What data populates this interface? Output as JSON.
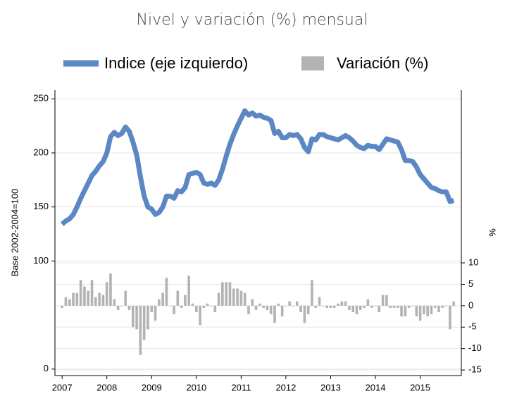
{
  "chart_data": {
    "type": "line_bar",
    "title": "Nivel y variación (%) mensual",
    "ylabel": "Base 2002-2004=100",
    "y2label": "%",
    "xlim": [
      2006.84,
      2015.92
    ],
    "xticks": [
      2007,
      2008,
      2009,
      2010,
      2011,
      2012,
      2013,
      2014,
      2015
    ],
    "ylim": [
      -6,
      258
    ],
    "yticks": [
      0,
      100,
      150,
      200,
      250
    ],
    "y2lim": [
      -16.3,
      50.3
    ],
    "y2ticks": [
      10,
      5,
      0,
      -5,
      -10,
      -15
    ],
    "grid": true,
    "x": [
      2007,
      2007.083,
      2007.167,
      2007.25,
      2007.333,
      2007.417,
      2007.5,
      2007.583,
      2007.667,
      2007.75,
      2007.833,
      2007.917,
      2008,
      2008.083,
      2008.167,
      2008.25,
      2008.333,
      2008.417,
      2008.5,
      2008.583,
      2008.667,
      2008.75,
      2008.833,
      2008.917,
      2009,
      2009.083,
      2009.167,
      2009.25,
      2009.333,
      2009.417,
      2009.5,
      2009.583,
      2009.667,
      2009.75,
      2009.833,
      2009.917,
      2010,
      2010.083,
      2010.167,
      2010.25,
      2010.333,
      2010.417,
      2010.5,
      2010.583,
      2010.667,
      2010.75,
      2010.833,
      2010.917,
      2011,
      2011.083,
      2011.167,
      2011.25,
      2011.333,
      2011.417,
      2011.5,
      2011.583,
      2011.667,
      2011.75,
      2011.833,
      2011.917,
      2012,
      2012.083,
      2012.167,
      2012.25,
      2012.333,
      2012.417,
      2012.5,
      2012.583,
      2012.667,
      2012.75,
      2012.833,
      2012.917,
      2013,
      2013.083,
      2013.167,
      2013.25,
      2013.333,
      2013.417,
      2013.5,
      2013.583,
      2013.667,
      2013.75,
      2013.833,
      2013.917,
      2014,
      2014.083,
      2014.167,
      2014.25,
      2014.333,
      2014.417,
      2014.5,
      2014.583,
      2014.667,
      2014.75,
      2014.833,
      2014.917,
      2015,
      2015.083,
      2015.167,
      2015.25,
      2015.333,
      2015.417,
      2015.5,
      2015.583,
      2015.667,
      2015.75
    ],
    "series": [
      {
        "name": "Indice (eje izquierdo)",
        "color": "#5b87c5",
        "axis": "y",
        "kind": "line",
        "values": [
          134,
          137,
          139,
          143,
          150,
          158,
          165,
          172,
          179,
          183,
          188,
          192,
          200,
          215,
          219,
          216,
          218,
          224,
          220,
          210,
          198,
          178,
          160,
          150,
          148,
          143,
          145,
          150,
          160,
          160,
          158,
          165,
          164,
          168,
          180,
          181,
          182,
          180,
          172,
          171,
          172,
          170,
          175,
          185,
          197,
          208,
          217,
          225,
          232,
          239,
          235,
          237,
          234,
          235,
          233,
          232,
          230,
          218,
          220,
          214,
          214,
          217,
          216,
          217,
          213,
          205,
          201,
          213,
          212,
          217,
          217,
          215,
          214,
          213,
          212,
          214,
          216,
          214,
          211,
          207,
          205,
          204,
          207,
          206,
          206,
          203,
          208,
          213,
          212,
          211,
          210,
          203,
          193,
          193,
          192,
          187,
          180,
          176,
          172,
          168,
          167,
          165,
          164,
          164,
          155,
          156
        ]
      },
      {
        "name": "Variación (%)",
        "color": "#b3b3b3",
        "axis": "y2",
        "kind": "bar",
        "values": [
          -0.5,
          2,
          1.5,
          3,
          3,
          6,
          4.5,
          3.5,
          6,
          2,
          3,
          2.5,
          5.5,
          7.5,
          1.5,
          -1,
          0,
          3.5,
          -1,
          -5,
          -5.5,
          -11.5,
          -8,
          -5.5,
          -1.5,
          -3.5,
          1.5,
          3,
          6.5,
          0,
          -2,
          3.5,
          -0.5,
          2.5,
          7,
          0.5,
          -1.5,
          -4.5,
          -0.5,
          0.5,
          0,
          -1.5,
          3,
          5.5,
          5.5,
          5.5,
          4,
          4,
          3.5,
          3,
          -2,
          1.5,
          -1,
          0.5,
          -0.5,
          -1,
          -2,
          -4,
          0.5,
          -2.5,
          0,
          1,
          0,
          1,
          -1.5,
          -4,
          -2,
          6,
          -0.5,
          2,
          0,
          -0.5,
          -0.5,
          -0.5,
          0.5,
          1,
          1,
          -1,
          -1.5,
          -2,
          -1,
          -0.5,
          1.5,
          -0.5,
          0,
          -1.5,
          2.5,
          2.5,
          -0.5,
          -0.5,
          -0.5,
          -2.5,
          -2.5,
          -0.5,
          0,
          -2.5,
          -3.5,
          -2,
          -2.5,
          -2,
          -0.5,
          -1.5,
          -0.5,
          0,
          -5.5,
          1
        ]
      }
    ]
  }
}
